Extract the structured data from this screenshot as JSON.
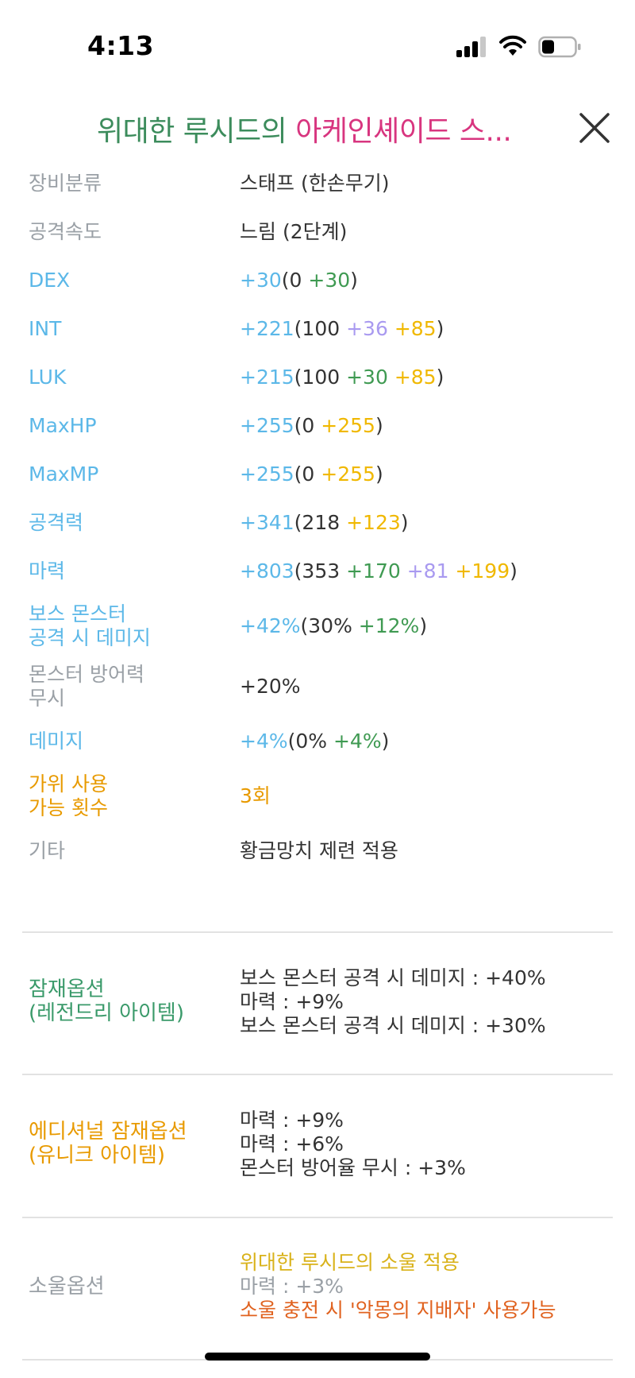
{
  "status_bar": {
    "time": "4:13"
  },
  "title": {
    "part1": "위대한 루시드의 ",
    "part2": "아케인셰이드 스..."
  },
  "stats": [
    {
      "label": "장비분류",
      "label_color": "gray",
      "value": [
        {
          "t": "스태프 (한손무기)",
          "c": "dark"
        }
      ]
    },
    {
      "label": "공격속도",
      "label_color": "gray",
      "value": [
        {
          "t": "느림 (2단계)",
          "c": "dark"
        }
      ]
    },
    {
      "label": "DEX",
      "label_color": "blue",
      "value": [
        {
          "t": "+30",
          "c": "blue"
        },
        {
          "t": "(0 ",
          "c": "dark"
        },
        {
          "t": "+30",
          "c": "green"
        },
        {
          "t": ")",
          "c": "dark"
        }
      ]
    },
    {
      "label": "INT",
      "label_color": "blue",
      "value": [
        {
          "t": "+221",
          "c": "blue"
        },
        {
          "t": "(100 ",
          "c": "dark"
        },
        {
          "t": "+36",
          "c": "purple"
        },
        {
          "t": " ",
          "c": "dark"
        },
        {
          "t": "+85",
          "c": "yellow"
        },
        {
          "t": ")",
          "c": "dark"
        }
      ]
    },
    {
      "label": "LUK",
      "label_color": "blue",
      "value": [
        {
          "t": "+215",
          "c": "blue"
        },
        {
          "t": "(100 ",
          "c": "dark"
        },
        {
          "t": "+30",
          "c": "green"
        },
        {
          "t": " ",
          "c": "dark"
        },
        {
          "t": "+85",
          "c": "yellow"
        },
        {
          "t": ")",
          "c": "dark"
        }
      ]
    },
    {
      "label": "MaxHP",
      "label_color": "blue",
      "value": [
        {
          "t": "+255",
          "c": "blue"
        },
        {
          "t": "(0 ",
          "c": "dark"
        },
        {
          "t": "+255",
          "c": "yellow"
        },
        {
          "t": ")",
          "c": "dark"
        }
      ]
    },
    {
      "label": "MaxMP",
      "label_color": "blue",
      "value": [
        {
          "t": "+255",
          "c": "blue"
        },
        {
          "t": "(0 ",
          "c": "dark"
        },
        {
          "t": "+255",
          "c": "yellow"
        },
        {
          "t": ")",
          "c": "dark"
        }
      ]
    },
    {
      "label": "공격력",
      "label_color": "blue",
      "value": [
        {
          "t": "+341",
          "c": "blue"
        },
        {
          "t": "(218 ",
          "c": "dark"
        },
        {
          "t": "+123",
          "c": "yellow"
        },
        {
          "t": ")",
          "c": "dark"
        }
      ]
    },
    {
      "label": "마력",
      "label_color": "blue",
      "value": [
        {
          "t": "+803",
          "c": "blue"
        },
        {
          "t": "(353 ",
          "c": "dark"
        },
        {
          "t": "+170",
          "c": "green"
        },
        {
          "t": " ",
          "c": "dark"
        },
        {
          "t": "+81",
          "c": "purple"
        },
        {
          "t": " ",
          "c": "dark"
        },
        {
          "t": "+199",
          "c": "yellow"
        },
        {
          "t": ")",
          "c": "dark"
        }
      ]
    },
    {
      "label": "보스 몬스터\n공격 시 데미지",
      "label_color": "blue",
      "value": [
        {
          "t": "+42%",
          "c": "blue"
        },
        {
          "t": "(30% ",
          "c": "dark"
        },
        {
          "t": "+12%",
          "c": "green"
        },
        {
          "t": ")",
          "c": "dark"
        }
      ]
    },
    {
      "label": "몬스터 방어력\n무시",
      "label_color": "gray",
      "value": [
        {
          "t": "+20%",
          "c": "dark"
        }
      ]
    },
    {
      "label": "데미지",
      "label_color": "blue",
      "value": [
        {
          "t": "+4%",
          "c": "blue"
        },
        {
          "t": "(0% ",
          "c": "dark"
        },
        {
          "t": "+4%",
          "c": "green"
        },
        {
          "t": ")",
          "c": "dark"
        }
      ]
    },
    {
      "label": "가위 사용\n가능 횟수",
      "label_color": "orange",
      "value": [
        {
          "t": "3회",
          "c": "orange"
        }
      ]
    },
    {
      "label": "기타",
      "label_color": "gray",
      "value": [
        {
          "t": "황금망치 제련 적용",
          "c": "dark"
        }
      ]
    }
  ],
  "potential": {
    "label": "잠재옵션\n(레전드리 아이템)",
    "lines": [
      {
        "t": "보스 몬스터 공격 시 데미지 : +40%",
        "c": "dark"
      },
      {
        "t": "마력 : +9%",
        "c": "dark"
      },
      {
        "t": "보스 몬스터 공격 시 데미지 : +30%",
        "c": "dark"
      }
    ]
  },
  "additional_potential": {
    "label": "에디셔널 잠재옵션\n(유니크 아이템)",
    "lines": [
      {
        "t": "마력 : +9%",
        "c": "dark"
      },
      {
        "t": "마력 : +6%",
        "c": "dark"
      },
      {
        "t": "몬스터 방어율 무시 : +3%",
        "c": "dark"
      }
    ]
  },
  "soul": {
    "label": "소울옵션",
    "lines": [
      {
        "t": "위대한 루시드의 소울 적용",
        "c": "gold"
      },
      {
        "t": "마력 : +3%",
        "c": "gray"
      },
      {
        "t": "소울 충전 시 '악몽의 지배자' 사용가능",
        "c": "redorange"
      }
    ]
  },
  "colors": {
    "gray": "#9aa0a6",
    "blue": "#5cb8e8",
    "dark": "#333333",
    "green": "#3f9a52",
    "purple": "#a99af0",
    "yellow": "#f0b800",
    "orange": "#e89a00",
    "teal": "#3a9a6a",
    "gold": "#d9b21a",
    "redorange": "#e0621f",
    "title_green": "#3c8c5c",
    "title_pink": "#d8357f"
  },
  "icons": {
    "close": "close-icon",
    "signal": "cellular-signal-icon",
    "wifi": "wifi-icon",
    "battery": "battery-icon"
  }
}
